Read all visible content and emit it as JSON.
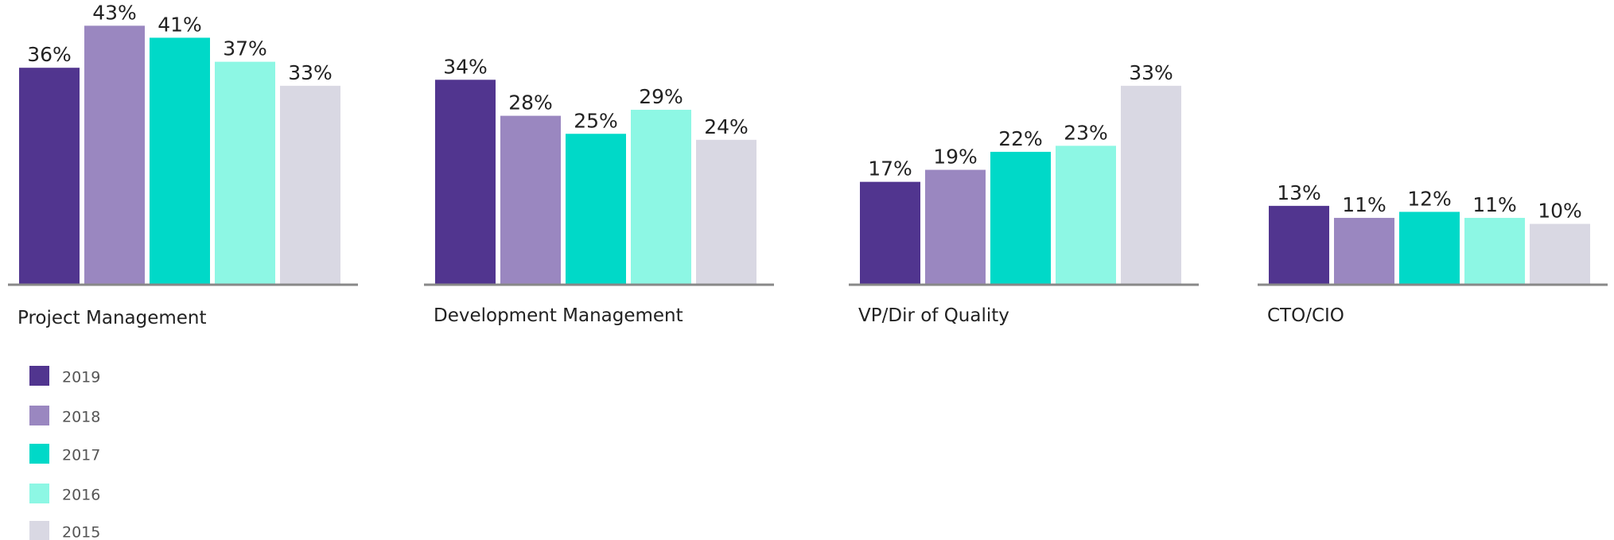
{
  "chart_data": {
    "type": "bar",
    "categories": [
      "Project Management",
      "Development Management",
      "VP/Dir of Quality",
      "CTO/CIO"
    ],
    "series": [
      {
        "name": "2019",
        "color": "#51358f",
        "values": [
          36,
          34,
          17,
          13
        ],
        "value_labels": [
          "36%",
          "34%",
          "17%",
          "13%"
        ]
      },
      {
        "name": "2018",
        "color": "#9a87c0",
        "values": [
          43,
          28,
          19,
          11
        ],
        "value_labels": [
          "43%",
          "28%",
          "19%",
          "11%"
        ]
      },
      {
        "name": "2017",
        "color": "#00d9c8",
        "values": [
          41,
          25,
          22,
          12
        ],
        "value_labels": [
          "41%",
          "25%",
          "22%",
          "12%"
        ]
      },
      {
        "name": "2016",
        "color": "#8df7e4",
        "values": [
          37,
          29,
          23,
          11
        ],
        "value_labels": [
          "37%",
          "29%",
          "23%",
          "11%"
        ]
      },
      {
        "name": "2015",
        "color": "#d9d8e3",
        "values": [
          33,
          24,
          33,
          10
        ],
        "value_labels": [
          "33%",
          "24%",
          "33%",
          "10%"
        ]
      }
    ]
  }
}
